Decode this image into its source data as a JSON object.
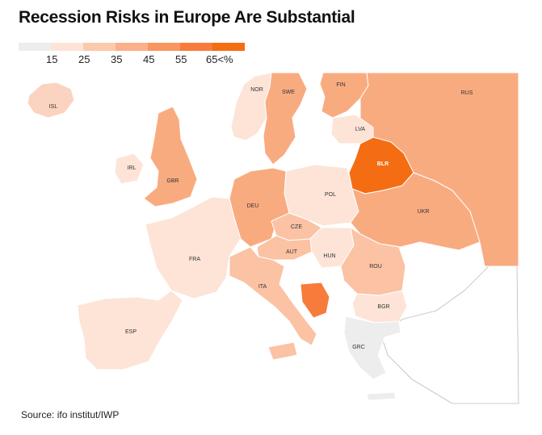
{
  "title": "Recession Risks in Europe Are Substantial",
  "legend": {
    "colors": [
      "#ededed",
      "#fde4d7",
      "#fcc9ad",
      "#fbb08a",
      "#f99560",
      "#f77c3c",
      "#f46d12"
    ],
    "ticks": [
      "15",
      "25",
      "35",
      "45",
      "55",
      "65<%"
    ]
  },
  "countries": {
    "ISL": {
      "label": "ISL",
      "color": "#fbd3c1"
    },
    "NOR": {
      "label": "NOR",
      "color": "#fde4d7"
    },
    "SWE": {
      "label": "SWE",
      "color": "#f9ab80"
    },
    "FIN": {
      "label": "FIN",
      "color": "#f9ab80"
    },
    "RUS": {
      "label": "RUS",
      "color": "#f9ab80"
    },
    "LVA": {
      "label": "LVA",
      "color": "#fde4d7"
    },
    "IRL": {
      "label": "IRL",
      "color": "#fde4d7"
    },
    "GBR": {
      "label": "GBR",
      "color": "#f9ab80"
    },
    "BLR": {
      "label": "BLR",
      "color": "#f46d12"
    },
    "DEU": {
      "label": "DEU",
      "color": "#f9ab80"
    },
    "POL": {
      "label": "POL",
      "color": "#fde4d7"
    },
    "UKR": {
      "label": "UKR",
      "color": "#f9ab80"
    },
    "CZE": {
      "label": "CZE",
      "color": "#fbc2a4"
    },
    "FRA": {
      "label": "FRA",
      "color": "#fde4d7"
    },
    "AUT": {
      "label": "AUT",
      "color": "#fbc2a4"
    },
    "HUN": {
      "label": "HUN",
      "color": "#fde4d7"
    },
    "ROU": {
      "label": "ROU",
      "color": "#fbc2a4"
    },
    "ITA": {
      "label": "ITA",
      "color": "#fbc2a4"
    },
    "BIH": {
      "label": "",
      "color": "#f77c3c"
    },
    "BGR": {
      "label": "BGR",
      "color": "#fde4d7"
    },
    "ESP": {
      "label": "ESP",
      "color": "#fde4d7"
    },
    "GRC": {
      "label": "GRC",
      "color": "#ededed"
    }
  },
  "source": "Source: ifo institut/IWP"
}
